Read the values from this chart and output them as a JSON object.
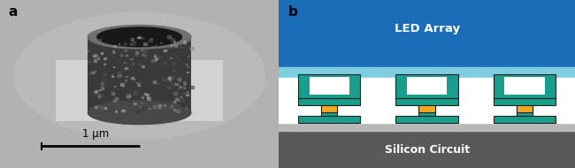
{
  "panel_a_label": "a",
  "panel_b_label": "b",
  "led_array_label": "LED Array",
  "silicon_circuit_label": "Silicon Circuit",
  "scale_bar_label": "1 μm",
  "colors": {
    "led_blue_dark": "#1b6db8",
    "led_blue_light": "#7dcde0",
    "teal": "#1a9e8c",
    "orange": "#f5a623",
    "white": "#ffffff",
    "silicon_dark": "#595959",
    "silicon_surface": "#b8b8b8",
    "border": "#222222",
    "sem_bg": "#a0a0a0",
    "sem_pad": "#d0d0d0",
    "sem_tube_outer": "#3a3a3a",
    "sem_tube_inner": "#181818",
    "sem_tube_rim": "#707070"
  },
  "figsize": [
    6.5,
    1.9
  ],
  "dpi": 100,
  "unit_centers": [
    0.17,
    0.5,
    0.83
  ],
  "panel_split": 0.485
}
